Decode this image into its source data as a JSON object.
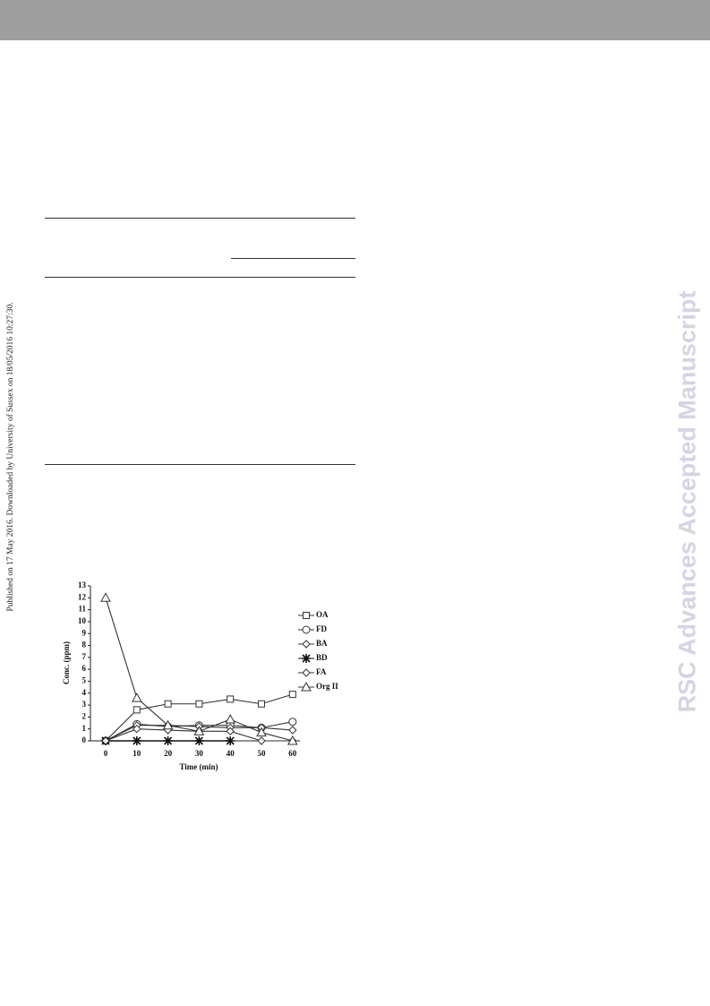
{
  "side_note": "Published on 17 May 2016. Downloaded by University of Sussex on 18/05/2016 10:27:30.",
  "watermark": "RSC Advances Accepted Manuscript",
  "chart_data": {
    "type": "line",
    "x_label": "Time (min)",
    "y_label": "Conc. (ppm)",
    "categories": [
      "0",
      "10",
      "20",
      "30",
      "40",
      "50",
      "60"
    ],
    "ylim": [
      0,
      13
    ],
    "yticks": [
      0,
      1,
      2,
      3,
      4,
      5,
      6,
      7,
      8,
      9,
      10,
      11,
      12,
      13
    ],
    "series": [
      {
        "name": "OA",
        "color": "#333333",
        "marker": "square",
        "values": [
          0,
          2.6,
          3.1,
          3.1,
          3.5,
          3.1,
          3.9
        ]
      },
      {
        "name": "FD",
        "color": "#333333",
        "marker": "circle",
        "values": [
          0,
          1.4,
          1.2,
          1.3,
          1.3,
          1.1,
          1.6
        ]
      },
      {
        "name": "BA",
        "color": "#333333",
        "marker": "diamond",
        "values": [
          0,
          1.3,
          1.3,
          1.2,
          1.1,
          1.1,
          0.9
        ]
      },
      {
        "name": "BD",
        "color": "#111111",
        "marker": "star",
        "values": [
          0,
          0,
          0,
          0,
          0,
          null,
          null
        ]
      },
      {
        "name": "FA",
        "color": "#333333",
        "marker": "diamond",
        "values": [
          0,
          1.0,
          0.9,
          0.8,
          0.8,
          0,
          0
        ]
      },
      {
        "name": "Org II",
        "color": "#333333",
        "marker": "triangle",
        "values": [
          12,
          3.6,
          1.3,
          0.8,
          1.8,
          0.7,
          0
        ]
      }
    ]
  }
}
